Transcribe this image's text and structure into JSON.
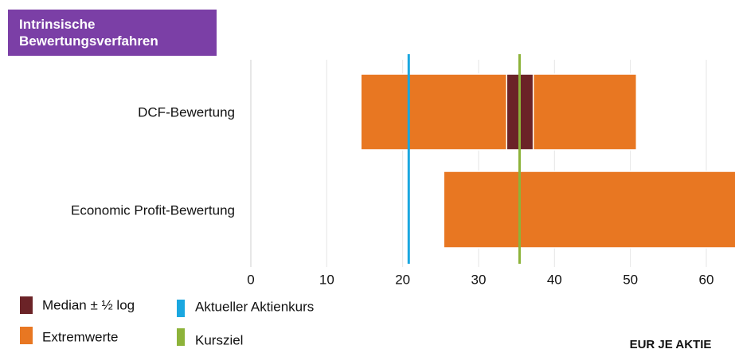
{
  "chart_data": {
    "type": "range-bar",
    "title": "Intrinsische Bewertungsverfahren",
    "categories": [
      "DCF-Bewertung",
      "Economic Profit-Bewertung"
    ],
    "series": [
      {
        "name": "Extremwerte",
        "color": "#e87722",
        "low": [
          14.5,
          25.4
        ],
        "high": [
          50.8,
          64
        ]
      },
      {
        "name": "Median ± ½ log",
        "color": "#6b2327",
        "low": [
          33.7,
          null
        ],
        "high": [
          37.2,
          null
        ]
      }
    ],
    "reference_lines": [
      {
        "name": "Aktueller Aktienkurs",
        "color": "#1aa7e0",
        "value": 20.8
      },
      {
        "name": "Kursziel",
        "color": "#8db33a",
        "value": 35.4
      }
    ],
    "xlim": [
      0,
      64
    ],
    "xticks": [
      0,
      10,
      20,
      30,
      40,
      50,
      60
    ],
    "grid": true,
    "axis_label": "EUR JE AKTIE"
  }
}
